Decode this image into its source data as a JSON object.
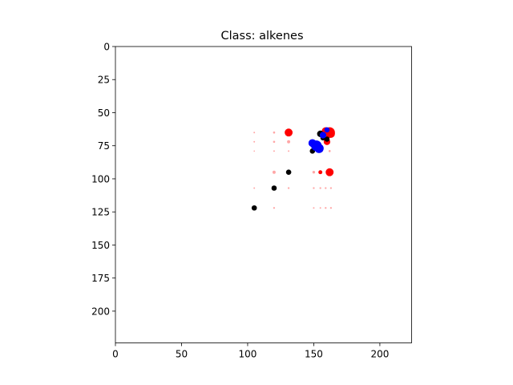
{
  "chart_data": {
    "type": "scatter",
    "title": "Class: alkenes",
    "xlabel": "",
    "ylabel": "",
    "xlim": [
      0,
      224
    ],
    "ylim": [
      224,
      0
    ],
    "y_inverted": true,
    "grid": false,
    "x_ticks": [
      0,
      50,
      100,
      150,
      200
    ],
    "y_ticks": [
      0,
      25,
      50,
      75,
      100,
      125,
      150,
      175,
      200
    ],
    "series": [
      {
        "color": "#ff0000",
        "points": [
          [
            131,
            65,
            3
          ],
          [
            162,
            65,
            4
          ],
          [
            159,
            64,
            3
          ],
          [
            163,
            66,
            3
          ],
          [
            162,
            95,
            3
          ],
          [
            155,
            95,
            1.5
          ],
          [
            120,
            95,
            1.2
          ],
          [
            150,
            95,
            1.0
          ],
          [
            131,
            72,
            1.2
          ],
          [
            160,
            72,
            2.5
          ],
          [
            105,
            65,
            0.6
          ],
          [
            105,
            72,
            0.6
          ],
          [
            105,
            79,
            0.5
          ],
          [
            120,
            65,
            0.8
          ],
          [
            120,
            72,
            0.8
          ],
          [
            120,
            79,
            0.6
          ],
          [
            131,
            79,
            0.6
          ],
          [
            150,
            79,
            0.6
          ],
          [
            156,
            79,
            0.8
          ],
          [
            162,
            79,
            0.8
          ],
          [
            105,
            107,
            0.6
          ],
          [
            131,
            107,
            0.7
          ],
          [
            150,
            107,
            0.7
          ],
          [
            155,
            107,
            0.7
          ],
          [
            159,
            107,
            0.7
          ],
          [
            163,
            107,
            0.7
          ],
          [
            120,
            122,
            0.7
          ],
          [
            150,
            122,
            0.6
          ],
          [
            155,
            122,
            0.6
          ],
          [
            159,
            122,
            0.7
          ],
          [
            163,
            122,
            0.7
          ]
        ]
      },
      {
        "color": "#000000",
        "points": [
          [
            105,
            122,
            2
          ],
          [
            120,
            107,
            2
          ],
          [
            131,
            95,
            2
          ],
          [
            149,
            79,
            2
          ],
          [
            155,
            66,
            2.5
          ],
          [
            157,
            69,
            2
          ],
          [
            160,
            70,
            2
          ]
        ]
      },
      {
        "color": "#0000ff",
        "points": [
          [
            152,
            75,
            4
          ],
          [
            149,
            73,
            3
          ],
          [
            154,
            77,
            3.5
          ],
          [
            157,
            67,
            2.5
          ],
          [
            160,
            63,
            2
          ]
        ]
      }
    ]
  }
}
